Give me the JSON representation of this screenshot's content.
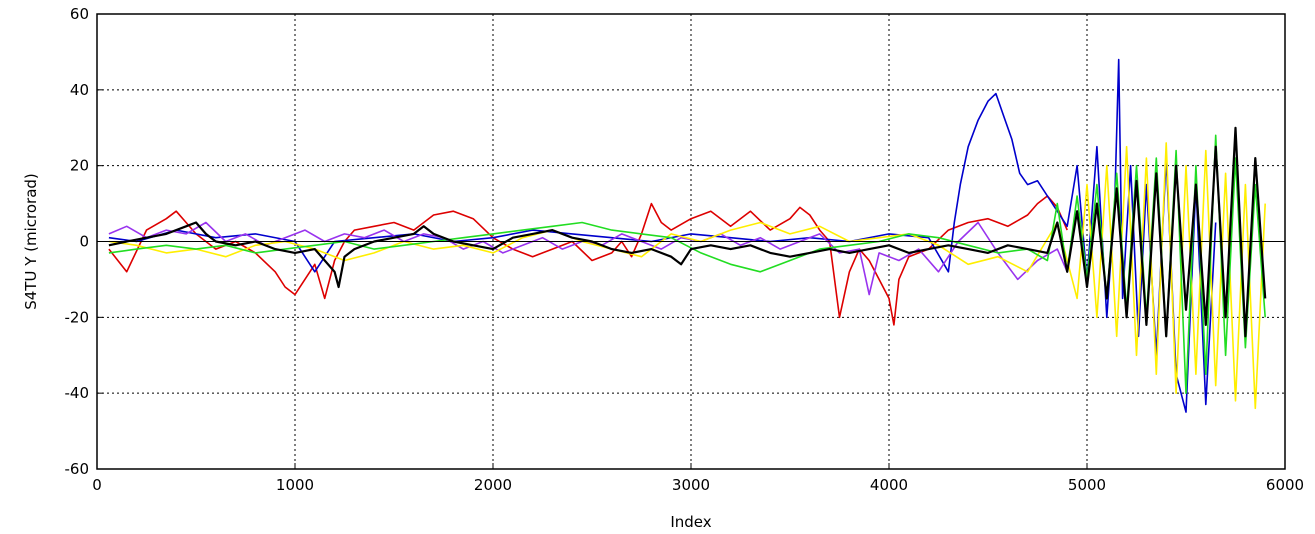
{
  "chart_data": {
    "type": "line",
    "xlabel": "Index",
    "ylabel": "S4TU Y (microrad)",
    "xlim": [
      0,
      6000
    ],
    "ylim": [
      -60,
      60
    ],
    "x_ticks": [
      0,
      1000,
      2000,
      3000,
      4000,
      5000,
      6000
    ],
    "y_ticks": [
      -60,
      -40,
      -20,
      0,
      20,
      40,
      60
    ],
    "x_tick_labels": [
      "0",
      "1000",
      "2000",
      "3000",
      "4000",
      "5000",
      "6000"
    ],
    "y_tick_labels": [
      "-60",
      "-40",
      "-20",
      "0",
      "20",
      "40",
      "60"
    ],
    "grid": true,
    "grid_style": "dotted",
    "zero_line": true,
    "series": [
      {
        "color": "#dd0000",
        "x": [
          60,
          150,
          250,
          350,
          400,
          450,
          500,
          600,
          700,
          800,
          900,
          950,
          1000,
          1050,
          1100,
          1150,
          1200,
          1250,
          1300,
          1400,
          1500,
          1600,
          1700,
          1800,
          1900,
          2000,
          2100,
          2200,
          2300,
          2400,
          2500,
          2600,
          2650,
          2700,
          2750,
          2800,
          2850,
          2900,
          3000,
          3100,
          3200,
          3300,
          3400,
          3500,
          3550,
          3600,
          3650,
          3700,
          3750,
          3800,
          3850,
          3900,
          3950,
          4000,
          4025,
          4050,
          4100,
          4200,
          4300,
          4400,
          4500,
          4600,
          4700,
          4750,
          4800,
          4850,
          4900
        ],
        "y": [
          -2,
          -8,
          3,
          6,
          8,
          5,
          2,
          -2,
          0,
          -3,
          -8,
          -12,
          -14,
          -10,
          -6,
          -15,
          -5,
          0,
          3,
          4,
          5,
          3,
          7,
          8,
          6,
          1,
          -2,
          -4,
          -2,
          0,
          -5,
          -3,
          0,
          -4,
          2,
          10,
          5,
          3,
          6,
          8,
          4,
          8,
          3,
          6,
          9,
          7,
          3,
          0,
          -20,
          -8,
          -2,
          -5,
          -10,
          -15,
          -22,
          -10,
          -4,
          -2,
          3,
          5,
          6,
          4,
          7,
          10,
          12,
          9,
          3
        ]
      },
      {
        "color": "#0000cc",
        "x": [
          60,
          200,
          400,
          600,
          800,
          1000,
          1100,
          1200,
          1400,
          1600,
          1800,
          2000,
          2200,
          2400,
          2600,
          2800,
          3000,
          3200,
          3400,
          3600,
          3800,
          4000,
          4200,
          4300,
          4330,
          4360,
          4400,
          4450,
          4500,
          4540,
          4580,
          4620,
          4660,
          4700,
          4750,
          4800,
          4850,
          4900,
          4950,
          5000,
          5050,
          5100,
          5140,
          5160,
          5180,
          5220,
          5260,
          5300,
          5350,
          5400,
          5450,
          5500,
          5550,
          5600,
          5650
        ],
        "y": [
          1,
          0,
          3,
          1,
          2,
          0,
          -8,
          0,
          1,
          2,
          0,
          1,
          3,
          2,
          1,
          0,
          2,
          1,
          0,
          1,
          0,
          2,
          1,
          -8,
          5,
          15,
          25,
          32,
          37,
          39,
          33,
          27,
          18,
          15,
          16,
          12,
          8,
          4,
          20,
          -10,
          25,
          -20,
          10,
          48,
          -15,
          20,
          -25,
          15,
          -30,
          22,
          -35,
          -45,
          15,
          -43,
          5
        ]
      },
      {
        "color": "#9933ee",
        "x": [
          60,
          150,
          250,
          350,
          450,
          550,
          650,
          750,
          850,
          950,
          1050,
          1150,
          1250,
          1350,
          1450,
          1550,
          1650,
          1750,
          1850,
          1950,
          2050,
          2150,
          2250,
          2350,
          2450,
          2550,
          2650,
          2750,
          2850,
          2950,
          3050,
          3150,
          3250,
          3350,
          3450,
          3550,
          3650,
          3750,
          3850,
          3900,
          3950,
          4050,
          4150,
          4250,
          4350,
          4450,
          4550,
          4650,
          4750,
          4850,
          4900
        ],
        "y": [
          2,
          4,
          1,
          3,
          2,
          5,
          0,
          2,
          -1,
          1,
          3,
          0,
          2,
          1,
          3,
          0,
          2,
          1,
          -2,
          0,
          -3,
          -1,
          1,
          -2,
          0,
          -1,
          2,
          0,
          -2,
          1,
          0,
          2,
          -1,
          1,
          -2,
          0,
          2,
          -3,
          -2,
          -14,
          -3,
          -5,
          -2,
          -8,
          0,
          5,
          -3,
          -10,
          -5,
          -2,
          -8
        ]
      },
      {
        "color": "#ffee00",
        "x": [
          60,
          200,
          350,
          500,
          650,
          800,
          950,
          1100,
          1250,
          1400,
          1550,
          1700,
          1850,
          2000,
          2150,
          2300,
          2450,
          2600,
          2750,
          2900,
          3050,
          3200,
          3350,
          3500,
          3650,
          3800,
          3950,
          4100,
          4250,
          4400,
          4550,
          4700,
          4850,
          4950,
          5000,
          5050,
          5100,
          5150,
          5200,
          5250,
          5300,
          5350,
          5400,
          5450,
          5500,
          5550,
          5600,
          5650,
          5700,
          5750,
          5800,
          5850,
          5900
        ],
        "y": [
          0,
          -1,
          -3,
          -2,
          -4,
          -1,
          0,
          -2,
          -5,
          -3,
          0,
          -2,
          -1,
          -3,
          1,
          3,
          0,
          -2,
          -4,
          2,
          0,
          3,
          5,
          2,
          4,
          0,
          1,
          2,
          -1,
          -6,
          -4,
          -8,
          5,
          -15,
          15,
          -20,
          20,
          -25,
          25,
          -30,
          22,
          -35,
          26,
          -40,
          20,
          -35,
          24,
          -38,
          18,
          -42,
          15,
          -44,
          10
        ]
      },
      {
        "color": "#22dd22",
        "x": [
          60,
          200,
          350,
          500,
          650,
          800,
          950,
          1100,
          1250,
          1400,
          1550,
          1700,
          1850,
          2000,
          2150,
          2300,
          2450,
          2600,
          2750,
          2900,
          3050,
          3200,
          3350,
          3500,
          3650,
          3800,
          3950,
          4100,
          4250,
          4400,
          4550,
          4700,
          4800,
          4850,
          4900,
          4950,
          5000,
          5050,
          5100,
          5150,
          5200,
          5250,
          5300,
          5350,
          5400,
          5450,
          5500,
          5550,
          5600,
          5650,
          5700,
          5750,
          5800,
          5850,
          5900
        ],
        "y": [
          -3,
          -2,
          -1,
          -2,
          -1,
          -3,
          -2,
          -1,
          0,
          -2,
          -1,
          0,
          1,
          2,
          3,
          4,
          5,
          3,
          2,
          1,
          -3,
          -6,
          -8,
          -5,
          -2,
          -1,
          0,
          2,
          1,
          -1,
          -3,
          -2,
          -5,
          10,
          -8,
          12,
          -10,
          15,
          -15,
          18,
          -18,
          20,
          -20,
          22,
          -25,
          24,
          -40,
          20,
          -35,
          28,
          -30,
          22,
          -28,
          15,
          -20
        ]
      },
      {
        "color": "#000000",
        "x": [
          60,
          150,
          250,
          350,
          450,
          500,
          550,
          600,
          700,
          800,
          900,
          1000,
          1100,
          1150,
          1200,
          1220,
          1250,
          1300,
          1400,
          1500,
          1600,
          1650,
          1700,
          1800,
          1900,
          2000,
          2100,
          2200,
          2300,
          2400,
          2500,
          2600,
          2700,
          2800,
          2900,
          2950,
          3000,
          3100,
          3200,
          3300,
          3400,
          3500,
          3600,
          3700,
          3800,
          3900,
          4000,
          4100,
          4200,
          4300,
          4400,
          4500,
          4600,
          4700,
          4800,
          4850,
          4900,
          4950,
          5000,
          5050,
          5100,
          5150,
          5200,
          5250,
          5300,
          5350,
          5400,
          5450,
          5500,
          5550,
          5600,
          5650,
          5700,
          5750,
          5800,
          5850,
          5900
        ],
        "y": [
          -1,
          0,
          1,
          2,
          4,
          5,
          2,
          0,
          -1,
          0,
          -2,
          -3,
          -2,
          -5,
          -8,
          -12,
          -4,
          -2,
          0,
          1,
          2,
          4,
          2,
          0,
          -1,
          -2,
          1,
          2,
          3,
          1,
          0,
          -2,
          -3,
          -2,
          -4,
          -6,
          -2,
          -1,
          -2,
          -1,
          -3,
          -4,
          -3,
          -2,
          -3,
          -2,
          -1,
          -3,
          -2,
          -1,
          -2,
          -3,
          -1,
          -2,
          -3,
          5,
          -8,
          8,
          -12,
          10,
          -15,
          14,
          -20,
          16,
          -22,
          18,
          -25,
          20,
          -18,
          15,
          -22,
          25,
          -20,
          30,
          -25,
          22,
          -15
        ]
      }
    ]
  }
}
